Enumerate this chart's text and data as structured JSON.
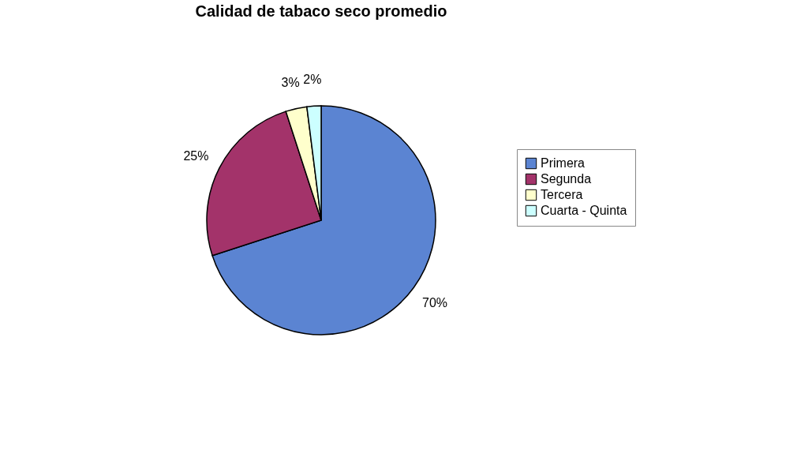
{
  "chart_data": {
    "type": "pie",
    "title": "Calidad de tabaco seco promedio",
    "categories": [
      "Primera",
      "Segunda",
      "Tercera",
      "Cuarta - Quinta"
    ],
    "values": [
      70,
      25,
      3,
      2
    ],
    "value_labels": [
      "70%",
      "25%",
      "3%",
      "2%"
    ],
    "colors": [
      "#5b84d2",
      "#a3336a",
      "#ffffcc",
      "#ccffff"
    ],
    "legend": "right"
  }
}
